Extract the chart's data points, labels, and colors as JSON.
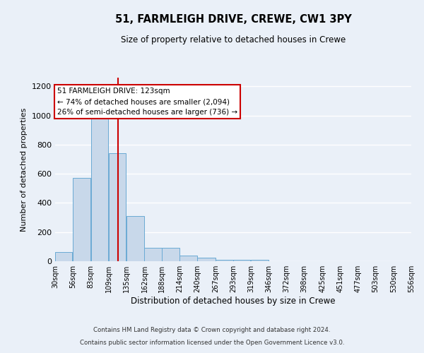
{
  "title": "51, FARMLEIGH DRIVE, CREWE, CW1 3PY",
  "subtitle": "Size of property relative to detached houses in Crewe",
  "xlabel": "Distribution of detached houses by size in Crewe",
  "ylabel": "Number of detached properties",
  "bin_edges": [
    30,
    56,
    83,
    109,
    135,
    162,
    188,
    214,
    240,
    267,
    293,
    319,
    346,
    372,
    398,
    425,
    451,
    477,
    503,
    530,
    556
  ],
  "bar_heights": [
    65,
    570,
    1000,
    740,
    310,
    93,
    93,
    40,
    25,
    10,
    10,
    10,
    0,
    0,
    0,
    0,
    0,
    0,
    0,
    0
  ],
  "bar_color": "#c8d8ea",
  "bar_edgecolor": "#6aaad4",
  "red_line_x": 123,
  "annotation_line1": "51 FARMLEIGH DRIVE: 123sqm",
  "annotation_line2": "← 74% of detached houses are smaller (2,094)",
  "annotation_line3": "26% of semi-detached houses are larger (736) →",
  "annotation_box_color": "#ffffff",
  "annotation_box_edgecolor": "#cc0000",
  "ylim": [
    0,
    1260
  ],
  "yticks": [
    0,
    200,
    400,
    600,
    800,
    1000,
    1200
  ],
  "background_color": "#eaf0f8",
  "grid_color": "#ffffff",
  "footnote1": "Contains HM Land Registry data © Crown copyright and database right 2024.",
  "footnote2": "Contains public sector information licensed under the Open Government Licence v3.0."
}
